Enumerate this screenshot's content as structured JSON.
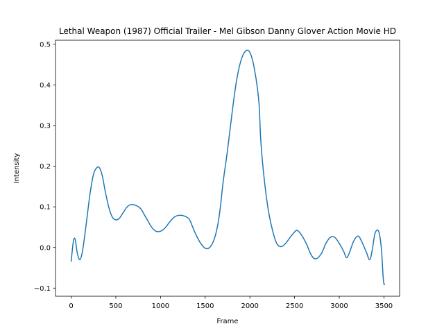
{
  "chart_data": {
    "type": "line",
    "title": "Lethal Weapon (1987) Official Trailer - Mel Gibson Danny Glover Action Movie HD",
    "xlabel": "Frame",
    "ylabel": "Intensity",
    "xlim": [
      -175,
      3675
    ],
    "ylim": [
      -0.12,
      0.51
    ],
    "xticks": [
      0,
      500,
      1000,
      1500,
      2000,
      2500,
      3000,
      3500
    ],
    "xtick_labels": [
      "0",
      "500",
      "1000",
      "1500",
      "2000",
      "2500",
      "3000",
      "3500"
    ],
    "yticks": [
      -0.1,
      0.0,
      0.1,
      0.2,
      0.3,
      0.4,
      0.5
    ],
    "ytick_labels": [
      "−0.1",
      "0.0",
      "0.1",
      "0.2",
      "0.3",
      "0.4",
      "0.5"
    ],
    "grid": false,
    "series": [
      {
        "color": "#1f77b4",
        "x": [
          0,
          25,
          45,
          70,
          100,
          130,
          170,
          210,
          250,
          290,
          320,
          350,
          380,
          420,
          460,
          500,
          540,
          580,
          620,
          660,
          720,
          780,
          820,
          860,
          900,
          950,
          1000,
          1050,
          1100,
          1150,
          1200,
          1260,
          1320,
          1360,
          1400,
          1450,
          1500,
          1550,
          1600,
          1640,
          1670,
          1700,
          1750,
          1800,
          1850,
          1900,
          1950,
          2000,
          2050,
          2100,
          2120,
          2150,
          2200,
          2250,
          2300,
          2350,
          2400,
          2450,
          2500,
          2530,
          2580,
          2630,
          2690,
          2740,
          2800,
          2850,
          2900,
          2950,
          3000,
          3050,
          3080,
          3110,
          3160,
          3210,
          3250,
          3300,
          3340,
          3370,
          3400,
          3440,
          3470,
          3490,
          3500,
          3510
        ],
        "y": [
          -0.035,
          0.015,
          0.02,
          -0.015,
          -0.03,
          -0.005,
          0.06,
          0.13,
          0.18,
          0.197,
          0.195,
          0.175,
          0.14,
          0.1,
          0.075,
          0.068,
          0.072,
          0.085,
          0.098,
          0.105,
          0.104,
          0.095,
          0.08,
          0.065,
          0.05,
          0.04,
          0.04,
          0.048,
          0.062,
          0.074,
          0.079,
          0.078,
          0.07,
          0.05,
          0.03,
          0.01,
          -0.002,
          0.0,
          0.02,
          0.055,
          0.1,
          0.16,
          0.24,
          0.33,
          0.41,
          0.46,
          0.483,
          0.48,
          0.44,
          0.36,
          0.27,
          0.19,
          0.1,
          0.045,
          0.01,
          0.002,
          0.01,
          0.025,
          0.038,
          0.042,
          0.03,
          0.01,
          -0.02,
          -0.028,
          -0.015,
          0.01,
          0.025,
          0.025,
          0.01,
          -0.01,
          -0.025,
          -0.015,
          0.015,
          0.028,
          0.015,
          -0.01,
          -0.03,
          -0.005,
          0.035,
          0.04,
          0.0,
          -0.07,
          -0.09,
          -0.09
        ]
      }
    ]
  }
}
